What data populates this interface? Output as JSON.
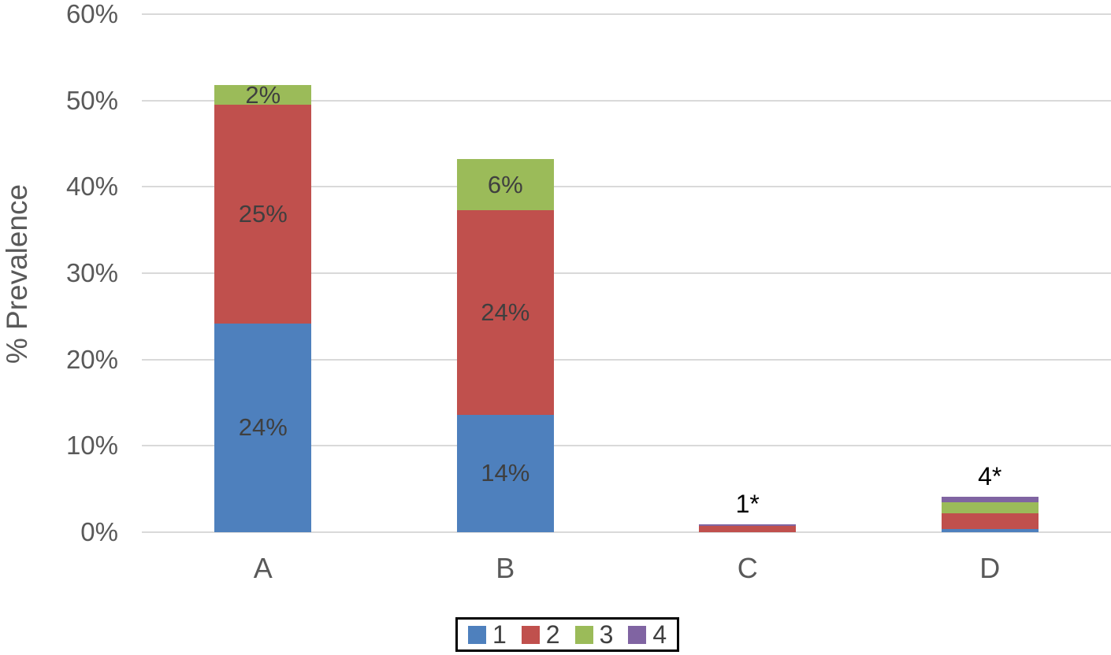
{
  "chart_data": {
    "type": "bar",
    "stacked": true,
    "title": "",
    "xlabel": "",
    "ylabel": "% Prevalence",
    "ylim": [
      0,
      60
    ],
    "ytick_values": [
      0,
      10,
      20,
      30,
      40,
      50,
      60
    ],
    "ytick_labels": [
      "0%",
      "10%",
      "20%",
      "30%",
      "40%",
      "50%",
      "60%"
    ],
    "grid": "horizontal-only",
    "gridline_color": "#d9d9d9",
    "axis_text_color": "#595959",
    "data_label_color": "#3f3f3f",
    "outside_label_color": "#000000",
    "categories": [
      "A",
      "B",
      "C",
      "D"
    ],
    "series": [
      {
        "name": "1",
        "color": "#4e80bd",
        "values": [
          24.2,
          13.6,
          0,
          0.4
        ]
      },
      {
        "name": "2",
        "color": "#c0504d",
        "values": [
          25.3,
          23.7,
          0.7,
          1.8
        ]
      },
      {
        "name": "3",
        "color": "#9bbb59",
        "values": [
          2.3,
          5.9,
          0,
          1.3
        ]
      },
      {
        "name": "4",
        "color": "#8064a2",
        "values": [
          0,
          0,
          0.2,
          0.6
        ]
      }
    ],
    "segment_labels": [
      [
        "24%",
        "14%",
        "",
        ""
      ],
      [
        "25%",
        "24%",
        "",
        ""
      ],
      [
        "2%",
        "6%",
        "",
        ""
      ],
      [
        "",
        "",
        "",
        ""
      ]
    ],
    "outside_labels": [
      "",
      "",
      "1*",
      "4*"
    ],
    "totals_shown_by_labels": {
      "A": "51%",
      "B": "44%",
      "C": "1*",
      "D": "4*"
    },
    "legend": {
      "position": "bottom-center",
      "bordered": true,
      "entries": [
        "1",
        "2",
        "3",
        "4"
      ]
    }
  }
}
